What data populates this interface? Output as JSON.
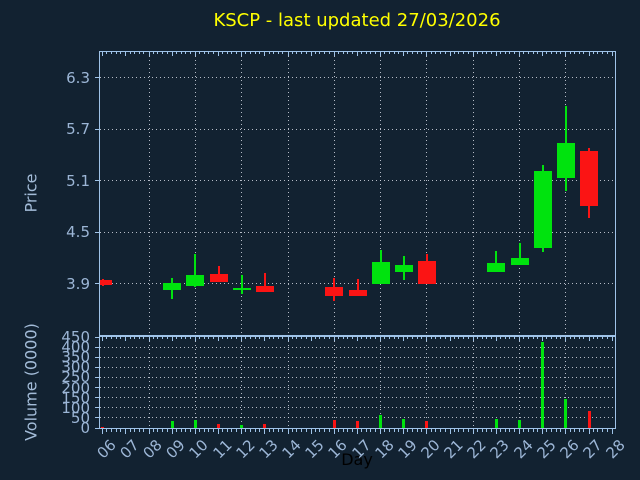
{
  "chart_data": {
    "type": "candlestick",
    "title": "KSCP - last updated 27/03/2026",
    "xlabel": "Day",
    "price_ylabel": "Price",
    "volume_ylabel": "Volume (0000)",
    "grid": true,
    "x_range": [
      5.88,
      28.12
    ],
    "price_range": [
      3.3,
      6.6
    ],
    "volume_range": [
      0,
      450
    ],
    "price_ticks": [
      3.9,
      4.5,
      5.1,
      5.7,
      6.3
    ],
    "volume_ticks": [
      0,
      50,
      100,
      150,
      200,
      250,
      300,
      350,
      400,
      450
    ],
    "x_ticks": [
      {
        "day": 6,
        "label": "06"
      },
      {
        "day": 7,
        "label": "07"
      },
      {
        "day": 8,
        "label": "08"
      },
      {
        "day": 9,
        "label": "09"
      },
      {
        "day": 10,
        "label": "10"
      },
      {
        "day": 11,
        "label": "11"
      },
      {
        "day": 12,
        "label": "12"
      },
      {
        "day": 13,
        "label": "13"
      },
      {
        "day": 14,
        "label": "14"
      },
      {
        "day": 15,
        "label": "15"
      },
      {
        "day": 16,
        "label": "16"
      },
      {
        "day": 17,
        "label": "17"
      },
      {
        "day": 18,
        "label": "18"
      },
      {
        "day": 19,
        "label": "19"
      },
      {
        "day": 20,
        "label": "20"
      },
      {
        "day": 21,
        "label": "21"
      },
      {
        "day": 22,
        "label": "22"
      },
      {
        "day": 23,
        "label": "23"
      },
      {
        "day": 24,
        "label": "24"
      },
      {
        "day": 25,
        "label": "25"
      },
      {
        "day": 26,
        "label": "26"
      },
      {
        "day": 27,
        "label": "27"
      },
      {
        "day": 28,
        "label": "28"
      }
    ],
    "grid_x_days": [
      8,
      10,
      12,
      14,
      16,
      18,
      20,
      22,
      24,
      26
    ],
    "candles": [
      {
        "day": 6,
        "open": 3.94,
        "high": 3.95,
        "low": 3.87,
        "close": 3.88,
        "volume": 5
      },
      {
        "day": 9,
        "open": 3.83,
        "high": 3.97,
        "low": 3.72,
        "close": 3.91,
        "volume": 33
      },
      {
        "day": 10,
        "open": 3.87,
        "high": 4.24,
        "low": 3.86,
        "close": 4.0,
        "volume": 42
      },
      {
        "day": 11,
        "open": 4.01,
        "high": 4.1,
        "low": 3.92,
        "close": 3.92,
        "volume": 22
      },
      {
        "day": 12,
        "open": 3.82,
        "high": 4.0,
        "low": 3.78,
        "close": 3.85,
        "volume": 13
      },
      {
        "day": 13,
        "open": 3.87,
        "high": 4.02,
        "low": 3.8,
        "close": 3.8,
        "volume": 22
      },
      {
        "day": 16,
        "open": 3.86,
        "high": 3.96,
        "low": 3.7,
        "close": 3.76,
        "volume": 40
      },
      {
        "day": 17,
        "open": 3.83,
        "high": 3.95,
        "low": 3.75,
        "close": 3.76,
        "volume": 33
      },
      {
        "day": 18,
        "open": 3.89,
        "high": 4.29,
        "low": 3.89,
        "close": 4.15,
        "volume": 66
      },
      {
        "day": 19,
        "open": 4.04,
        "high": 4.22,
        "low": 3.94,
        "close": 4.12,
        "volume": 46
      },
      {
        "day": 20,
        "open": 4.16,
        "high": 4.25,
        "low": 3.9,
        "close": 3.9,
        "volume": 33
      },
      {
        "day": 23,
        "open": 4.04,
        "high": 4.28,
        "low": 4.04,
        "close": 4.14,
        "volume": 46
      },
      {
        "day": 24,
        "open": 4.12,
        "high": 4.37,
        "low": 4.12,
        "close": 4.2,
        "volume": 41
      },
      {
        "day": 25,
        "open": 4.32,
        "high": 5.28,
        "low": 4.27,
        "close": 5.21,
        "volume": 425
      },
      {
        "day": 26,
        "open": 5.13,
        "high": 5.97,
        "low": 4.98,
        "close": 5.54,
        "volume": 143
      },
      {
        "day": 27,
        "open": 5.45,
        "high": 5.48,
        "low": 4.67,
        "close": 4.8,
        "volume": 86
      }
    ],
    "colors": {
      "up": "#00e30e",
      "down": "#fb1414",
      "background": "#122231",
      "spine": "#9fc3e8",
      "grid": "#d2d7e1",
      "tick_label": "#9cb6d6",
      "title": "#ffff00",
      "xlabel_text": "#000000"
    },
    "legend": null
  }
}
